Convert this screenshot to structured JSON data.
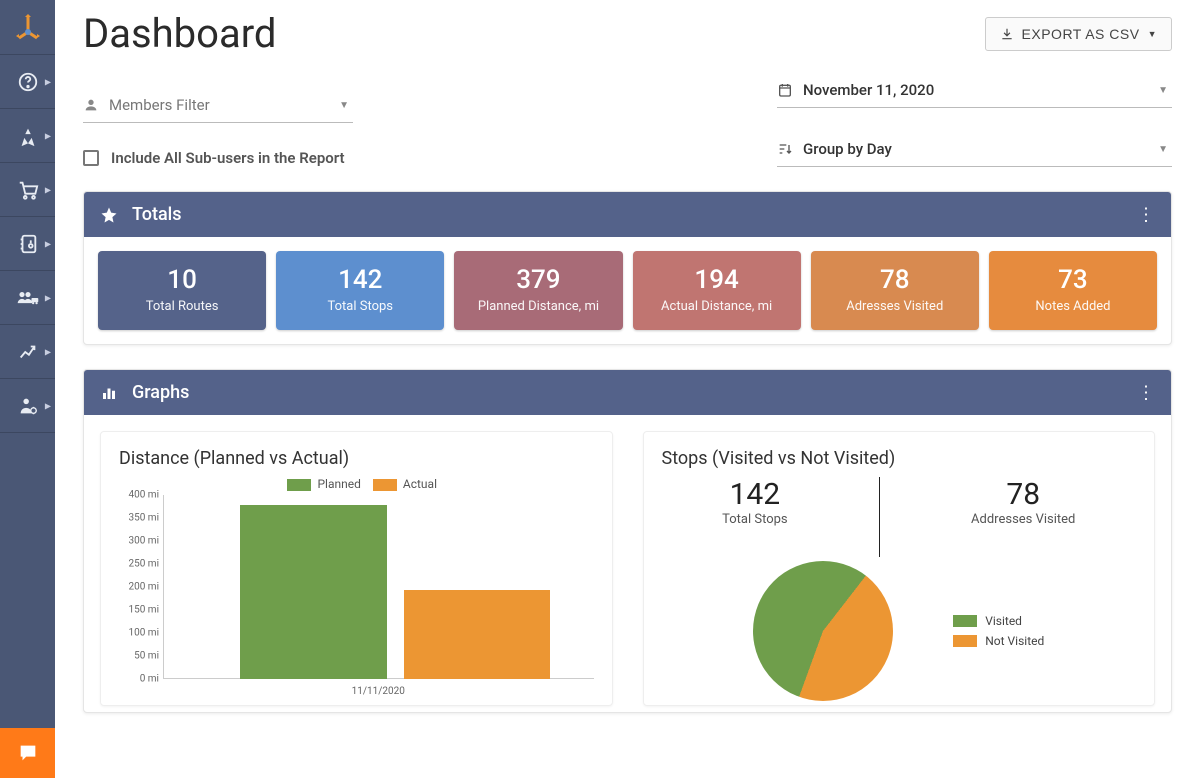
{
  "page_title": "Dashboard",
  "export_label": "EXPORT AS CSV",
  "filters": {
    "members_placeholder": "Members Filter",
    "include_subusers_label": "Include All Sub-users in the Report",
    "date_value": "November 11, 2020",
    "group_value": "Group by Day"
  },
  "sidebar_icons": [
    "help",
    "routes",
    "orders",
    "addressbook",
    "team",
    "analytics",
    "usersettings"
  ],
  "totals": {
    "header": "Totals",
    "cards": [
      {
        "value": "10",
        "label": "Total Routes",
        "color": "#55638a"
      },
      {
        "value": "142",
        "label": "Total Stops",
        "color": "#5d8fcf"
      },
      {
        "value": "379",
        "label": "Planned Distance, mi",
        "color": "#a86b77"
      },
      {
        "value": "194",
        "label": "Actual Distance, mi",
        "color": "#c07571"
      },
      {
        "value": "78",
        "label": "Adresses Visited",
        "color": "#d88a50"
      },
      {
        "value": "73",
        "label": "Notes Added",
        "color": "#e68b3e"
      }
    ]
  },
  "graphs": {
    "header": "Graphs",
    "bar_chart": {
      "title": "Distance (Planned vs Actual)",
      "type": "bar",
      "legend": [
        {
          "label": "Planned",
          "color": "#6f9e4b"
        },
        {
          "label": "Actual",
          "color": "#ec9633"
        }
      ],
      "y_ticks": [
        0,
        50,
        100,
        150,
        200,
        250,
        300,
        350,
        400
      ],
      "y_unit": "mi",
      "y_max": 400,
      "x_label": "11/11/2020",
      "bars": [
        {
          "value": 379,
          "color": "#6f9e4b",
          "left_pct": 18
        },
        {
          "value": 194,
          "color": "#ec9633",
          "left_pct": 56
        }
      ],
      "grid_color": "#eeeeee",
      "axis_color": "#cccccc",
      "label_fontsize": 10
    },
    "pie_chart": {
      "title": "Stops (Visited vs Not Visited)",
      "type": "pie",
      "stats": [
        {
          "value": "142",
          "label": "Total Stops"
        },
        {
          "value": "78",
          "label": "Addresses Visited"
        }
      ],
      "slices": [
        {
          "label": "Visited",
          "value": 78,
          "color": "#6f9e4b"
        },
        {
          "label": "Not Visited",
          "value": 64,
          "color": "#ec9633"
        }
      ],
      "visited_pct": 55
    }
  },
  "colors": {
    "sidebar_bg": "#4a5775",
    "panel_header_bg": "#54628a",
    "chat_bg": "#ff7a18"
  }
}
